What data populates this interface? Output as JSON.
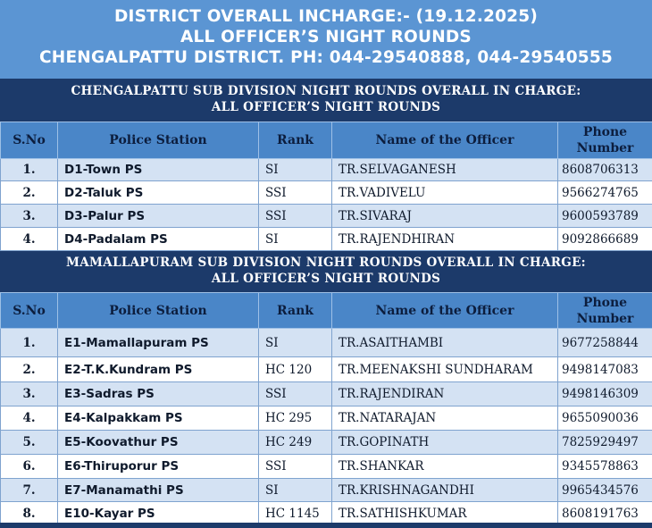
{
  "header": {
    "line1": "DISTRICT OVERALL INCHARGE:- (19.12.2025)",
    "line2": "ALL OFFICER’S NIGHT ROUNDS",
    "line3": "CHENGALPATTU DISTRICT. PH: 044-29540888, 044-29540555"
  },
  "columns": {
    "sno": "S.No",
    "station": "Police Station",
    "rank": "Rank",
    "officer": "Name of the Officer",
    "phone": "Phone Number"
  },
  "sections": [
    {
      "title1": "CHENGALPATTU SUB DIVISION NIGHT ROUNDS OVERALL IN CHARGE:",
      "title2": "ALL OFFICER’S NIGHT ROUNDS",
      "rows": [
        {
          "sno": "1.",
          "station": "D1-Town PS",
          "rank": "SI",
          "officer": "TR.SELVAGANESH",
          "phone": "8608706313"
        },
        {
          "sno": "2.",
          "station": "D2-Taluk PS",
          "rank": "SSI",
          "officer": "TR.VADIVELU",
          "phone": "9566274765"
        },
        {
          "sno": "3.",
          "station": "D3-Palur PS",
          "rank": "SSI",
          "officer": "TR.SIVARAJ",
          "phone": "9600593789"
        },
        {
          "sno": "4.",
          "station": "D4-Padalam PS",
          "rank": "SI",
          "officer": "TR.RAJENDHIRAN",
          "phone": "9092866689"
        }
      ]
    },
    {
      "title1": "MAMALLAPURAM SUB DIVISION NIGHT ROUNDS OVERALL IN CHARGE:",
      "title2": "ALL OFFICER’S NIGHT ROUNDS",
      "rows": [
        {
          "sno": "1.",
          "station": "E1-Mamallapuram PS",
          "rank": "SI",
          "officer": "TR.ASAITHAMBI",
          "phone": "9677258844"
        },
        {
          "sno": "2.",
          "station": "E2-T.K.Kundram PS",
          "rank": "HC 120",
          "officer": "TR.MEENAKSHI SUNDHARAM",
          "phone": "9498147083"
        },
        {
          "sno": "3.",
          "station": "E3-Sadras PS",
          "rank": "SSI",
          "officer": "TR.RAJENDIRAN",
          "phone": "9498146309"
        },
        {
          "sno": "4.",
          "station": "E4-Kalpakkam PS",
          "rank": "HC 295",
          "officer": "TR.NATARAJAN",
          "phone": "9655090036"
        },
        {
          "sno": "5.",
          "station": "E5-Koovathur PS",
          "rank": "HC 249",
          "officer": "TR.GOPINATH",
          "phone": "7825929497"
        },
        {
          "sno": "6.",
          "station": "E6-Thiruporur PS",
          "rank": "SSI",
          "officer": "TR.SHANKAR",
          "phone": "9345578863"
        },
        {
          "sno": "7.",
          "station": "E7-Manamathi PS",
          "rank": "SI",
          "officer": "TR.KRISHNAGANDHI",
          "phone": "9965434576"
        },
        {
          "sno": "8.",
          "station": "E10-Kayar PS",
          "rank": "HC 1145",
          "officer": "TR.SATHISHKUMAR",
          "phone": "8608191763"
        }
      ]
    }
  ]
}
